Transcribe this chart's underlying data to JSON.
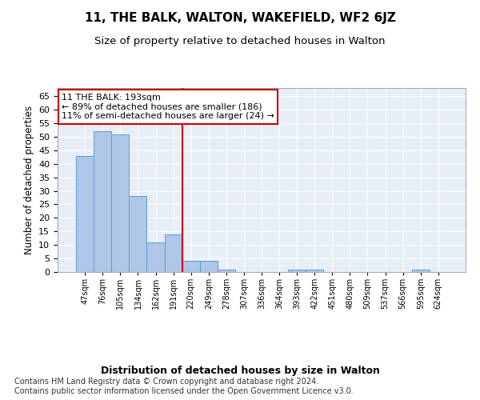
{
  "title": "11, THE BALK, WALTON, WAKEFIELD, WF2 6JZ",
  "subtitle": "Size of property relative to detached houses in Walton",
  "xlabel": "Distribution of detached houses by size in Walton",
  "ylabel": "Number of detached properties",
  "bar_labels": [
    "47sqm",
    "76sqm",
    "105sqm",
    "134sqm",
    "162sqm",
    "191sqm",
    "220sqm",
    "249sqm",
    "278sqm",
    "307sqm",
    "336sqm",
    "364sqm",
    "393sqm",
    "422sqm",
    "451sqm",
    "480sqm",
    "509sqm",
    "537sqm",
    "566sqm",
    "595sqm",
    "624sqm"
  ],
  "bar_values": [
    43,
    52,
    51,
    28,
    11,
    14,
    4,
    4,
    1,
    0,
    0,
    0,
    1,
    1,
    0,
    0,
    0,
    0,
    0,
    1,
    0
  ],
  "bar_color": "#aec6e8",
  "bar_edge_color": "#5a9fd4",
  "vline_x": 5.5,
  "vline_color": "#cc0000",
  "annotation_text": "11 THE BALK: 193sqm\n← 89% of detached houses are smaller (186)\n11% of semi-detached houses are larger (24) →",
  "annotation_box_color": "#ffffff",
  "annotation_box_edge_color": "#cc0000",
  "ylim": [
    0,
    68
  ],
  "yticks": [
    0,
    5,
    10,
    15,
    20,
    25,
    30,
    35,
    40,
    45,
    50,
    55,
    60,
    65
  ],
  "plot_background": "#e8eef8",
  "footer": "Contains HM Land Registry data © Crown copyright and database right 2024.\nContains public sector information licensed under the Open Government Licence v3.0.",
  "title_fontsize": 11,
  "subtitle_fontsize": 9.5,
  "xlabel_fontsize": 9,
  "ylabel_fontsize": 8.5,
  "annotation_fontsize": 8,
  "footer_fontsize": 7
}
